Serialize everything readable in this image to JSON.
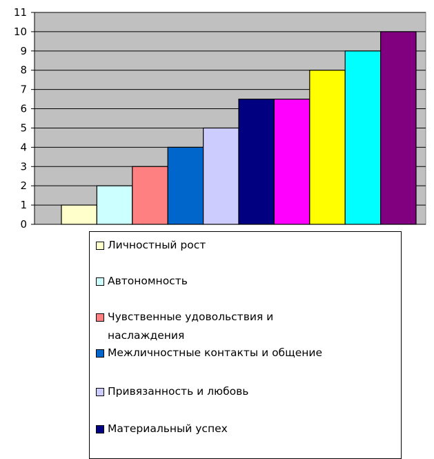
{
  "chart_data": {
    "type": "bar",
    "title": "",
    "xlabel": "",
    "ylabel": "",
    "ylim": [
      0,
      11
    ],
    "yticks": [
      "0",
      "1",
      "2",
      "3",
      "4",
      "5",
      "6",
      "7",
      "8",
      "9",
      "10",
      "11"
    ],
    "grid": true,
    "plot_background": "#c0c0c0",
    "legend_placement": "bottom",
    "categories": [
      "Личностный рост",
      "Автономность",
      "Чувственные удовольствия и наслаждения",
      "Межличностные контакты и общение",
      "Привязанность и любовь",
      "Материальный успех",
      "",
      "",
      "",
      ""
    ],
    "values": [
      1,
      2,
      3,
      4,
      5,
      6.5,
      6.5,
      8,
      9,
      10
    ],
    "colors": [
      "#ffffcc",
      "#ccffff",
      "#ff8080",
      "#0066cc",
      "#ccccff",
      "#000080",
      "#ff00ff",
      "#ffff00",
      "#00ffff",
      "#800080"
    ]
  },
  "legend": {
    "items": [
      {
        "lines": [
          "Личностный рост"
        ],
        "color": "#ffffcc"
      },
      {
        "lines": [
          "Автономность"
        ],
        "color": "#ccffff"
      },
      {
        "lines": [
          "Чувственные удовольствия и",
          "наслаждения"
        ],
        "color": "#ff8080"
      },
      {
        "lines": [
          "Межличностные контакты и общение"
        ],
        "color": "#0066cc"
      },
      {
        "lines": [
          "Привязанность и любовь"
        ],
        "color": "#ccccff"
      },
      {
        "lines": [
          "Материальный успех"
        ],
        "color": "#000080"
      }
    ]
  }
}
